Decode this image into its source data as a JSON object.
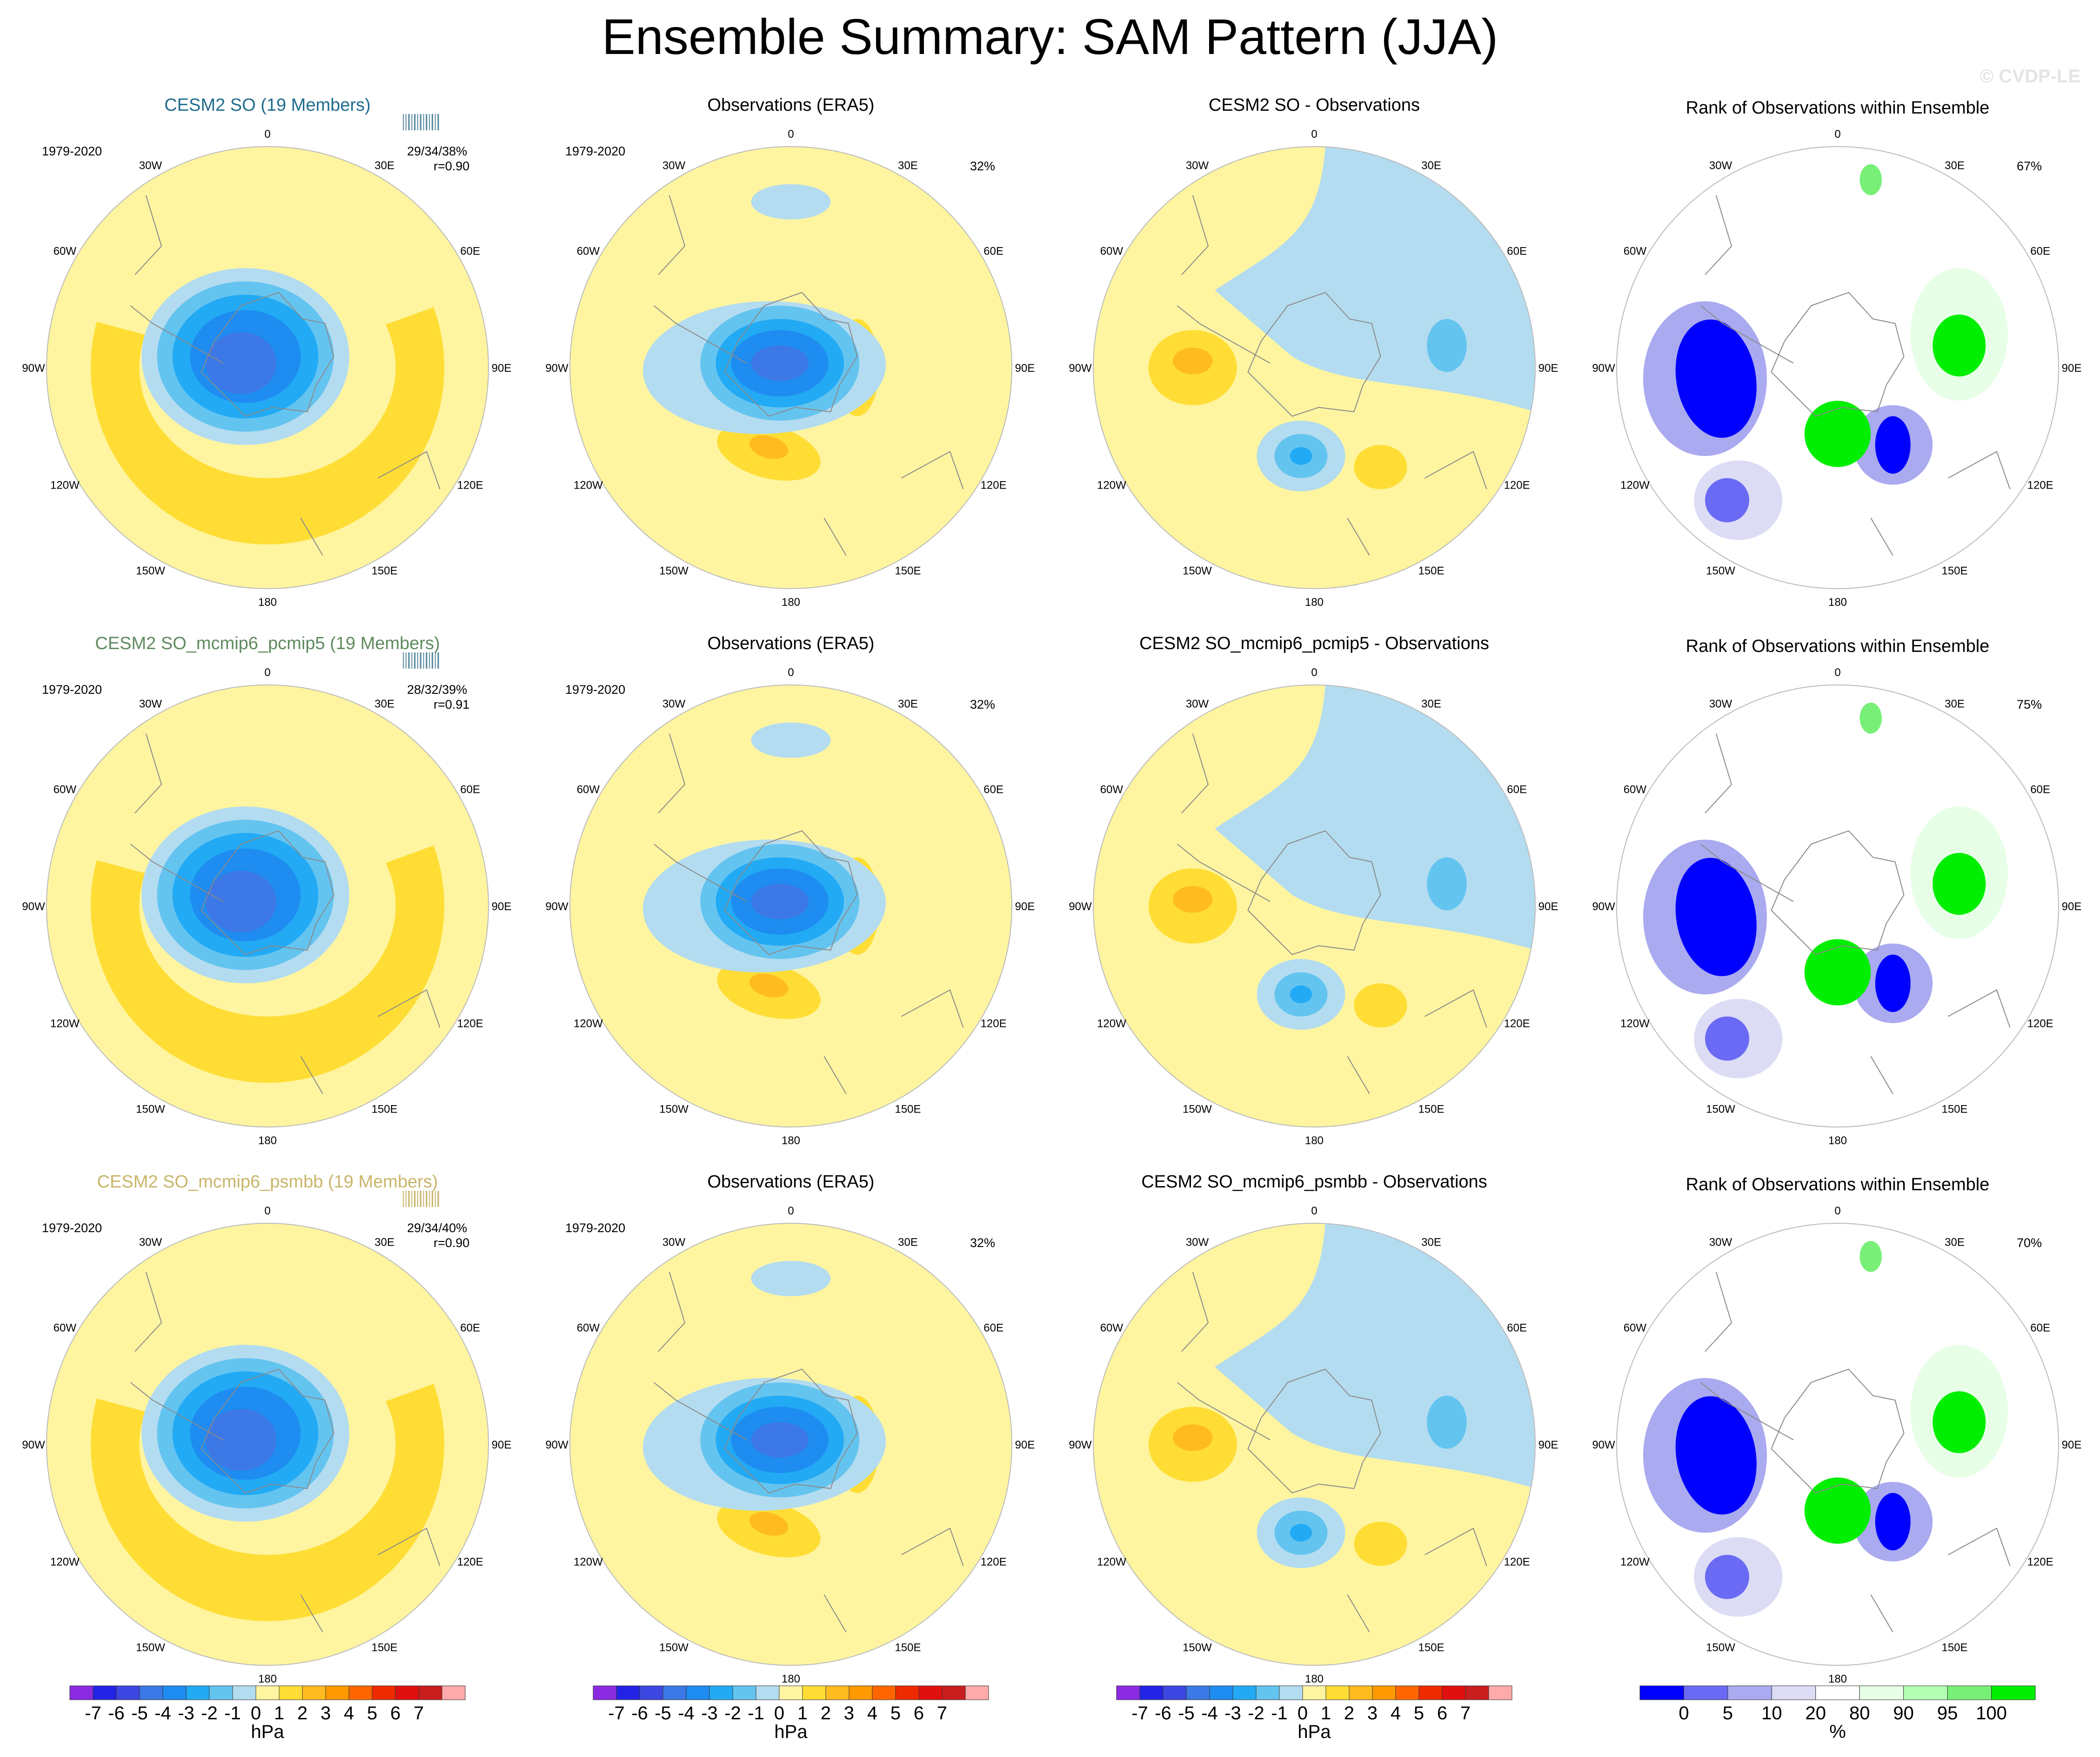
{
  "title": "Ensemble Summary: SAM Pattern (JJA)",
  "watermark": "© CVDP-LE",
  "rows": [
    {
      "model_title": "CESM2 SO (19 Members)",
      "model_color": "#1f6c8e",
      "period": "1979-2020",
      "model_stats": "29/34/38%",
      "model_r": "r=0.90",
      "obs_title": "Observations (ERA5)",
      "obs_period": "1979-2020",
      "obs_pct": "32%",
      "diff_title": "CESM2 SO - Observations",
      "rank_title": "Rank of Observations within Ensemble",
      "rank_pct": "67%"
    },
    {
      "model_title": "CESM2 SO_mcmip6_pcmip5 (19 Members)",
      "model_color": "#5f8a5f",
      "period": "1979-2020",
      "model_stats": "28/32/39%",
      "model_r": "r=0.91",
      "obs_title": "Observations (ERA5)",
      "obs_period": "1979-2020",
      "obs_pct": "32%",
      "diff_title": "CESM2 SO_mcmip6_pcmip5 - Observations",
      "rank_title": "Rank of Observations within Ensemble",
      "rank_pct": "75%"
    },
    {
      "model_title": "CESM2 SO_mcmip6_psmbb (19 Members)",
      "model_color": "#c9b56a",
      "period": "1979-2020",
      "model_stats": "29/34/40%",
      "model_r": "r=0.90",
      "obs_title": "Observations (ERA5)",
      "obs_period": "1979-2020",
      "obs_pct": "32%",
      "diff_title": "CESM2 SO_mcmip6_psmbb - Observations",
      "rank_title": "Rank of Observations within Ensemble",
      "rank_pct": "70%"
    }
  ],
  "lon_labels": [
    "0",
    "30E",
    "60E",
    "90E",
    "120E",
    "150E",
    "180",
    "150W",
    "120W",
    "90W",
    "60W",
    "30W"
  ],
  "colorbar_hpa": {
    "ticks": [
      "-7",
      "-6",
      "-5",
      "-4",
      "-3",
      "-2",
      "-1",
      "0",
      "1",
      "2",
      "3",
      "4",
      "5",
      "6",
      "7"
    ],
    "unit": "hPa",
    "colors": [
      "#8a2be2",
      "#2323e6",
      "#3c46e0",
      "#3c78e6",
      "#1e8cf0",
      "#22aaf5",
      "#64c4f0",
      "#b4dcf0",
      "#fff5a0",
      "#ffdd35",
      "#ffbb20",
      "#ff9900",
      "#ff6600",
      "#ee2a00",
      "#e01010",
      "#c81e1e",
      "#ffaaaa"
    ]
  },
  "colorbar_rank": {
    "ticks": [
      "0",
      "5",
      "10",
      "20",
      "80",
      "90",
      "95",
      "100"
    ],
    "unit": "%",
    "colors": [
      "#0000ff",
      "#6a6af5",
      "#aaaaf0",
      "#dcdcf5",
      "#ffffff",
      "#e6ffe6",
      "#b4ffb4",
      "#78f078",
      "#00ee00"
    ]
  },
  "chart_data": {
    "type": "heatmap",
    "description_of_fields": "Polar stereographic maps of SAM pattern (sea level pressure regression, hPa) and observation rank (%)",
    "levels_hpa": [
      -7,
      -6,
      -5,
      -4,
      -3,
      -2,
      -1,
      0,
      1,
      2,
      3,
      4,
      5,
      6,
      7
    ],
    "levels_rank": [
      0,
      5,
      10,
      20,
      80,
      90,
      95,
      100
    ],
    "model_pattern_stats": [
      {
        "model": "CESM2 SO",
        "pct": "29/34/38%",
        "r": 0.9
      },
      {
        "model": "CESM2 SO_mcmip6_pcmip5",
        "pct": "28/32/39%",
        "r": 0.91
      },
      {
        "model": "CESM2 SO_mcmip6_psmbb",
        "pct": "29/34/40%",
        "r": 0.9
      }
    ],
    "obs_pct": [
      32,
      32,
      32
    ],
    "rank_pct": [
      67,
      75,
      70
    ]
  }
}
